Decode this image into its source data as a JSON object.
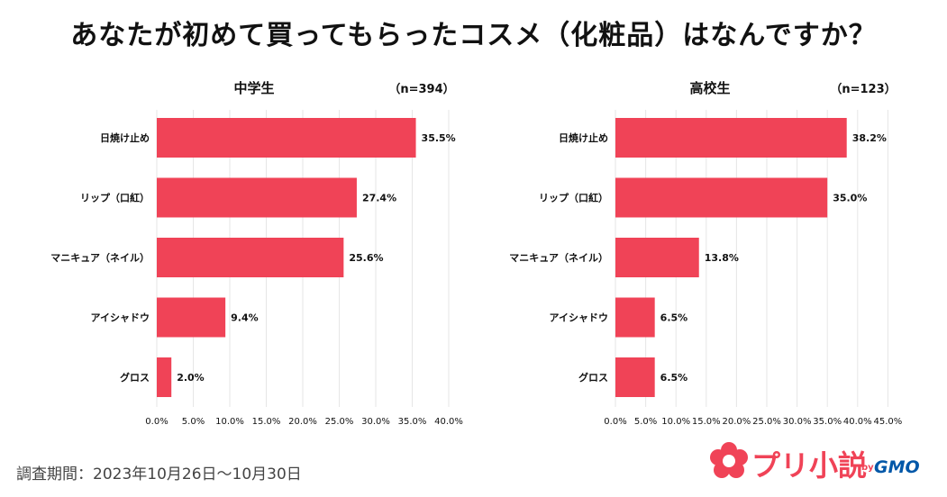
{
  "title": "あなたが初めて買ってもらったコスメ（化粧品）はなんですか？",
  "footer": "調査期間：2023年10月26日～10月30日",
  "logo": {
    "text": "プリ小説",
    "by": "by",
    "gmo": "GMO"
  },
  "colors": {
    "bar": "#f04357",
    "grid": "#e6e6e6",
    "text": "#111111"
  },
  "chart_data": [
    {
      "type": "bar",
      "orientation": "horizontal",
      "title": "中学生",
      "n_label": "（n=394）",
      "categories": [
        "日焼け止め",
        "リップ（口紅）",
        "マニキュア（ネイル）",
        "アイシャドウ",
        "グロス"
      ],
      "values": [
        35.5,
        27.4,
        25.6,
        9.4,
        2.0
      ],
      "value_labels": [
        "35.5%",
        "27.4%",
        "25.6%",
        "9.4%",
        "2.0%"
      ],
      "xlim": [
        0,
        40
      ],
      "xticks": [
        0,
        5,
        10,
        15,
        20,
        25,
        30,
        35,
        40
      ],
      "xtick_labels": [
        "0.0%",
        "5.0%",
        "10.0%",
        "15.0%",
        "20.0%",
        "25.0%",
        "30.0%",
        "35.0%",
        "40.0%"
      ],
      "grid": true
    },
    {
      "type": "bar",
      "orientation": "horizontal",
      "title": "高校生",
      "n_label": "（n=123）",
      "categories": [
        "日焼け止め",
        "リップ（口紅）",
        "マニキュア（ネイル）",
        "アイシャドウ",
        "グロス"
      ],
      "values": [
        38.2,
        35.0,
        13.8,
        6.5,
        6.5
      ],
      "value_labels": [
        "38.2%",
        "35.0%",
        "13.8%",
        "6.5%",
        "6.5%"
      ],
      "xlim": [
        0,
        45
      ],
      "xticks": [
        0,
        5,
        10,
        15,
        20,
        25,
        30,
        35,
        40,
        45
      ],
      "xtick_labels": [
        "0.0%",
        "5.0%",
        "10.0%",
        "15.0%",
        "20.0%",
        "25.0%",
        "30.0%",
        "35.0%",
        "40.0%",
        "45.0%"
      ],
      "grid": true
    }
  ]
}
